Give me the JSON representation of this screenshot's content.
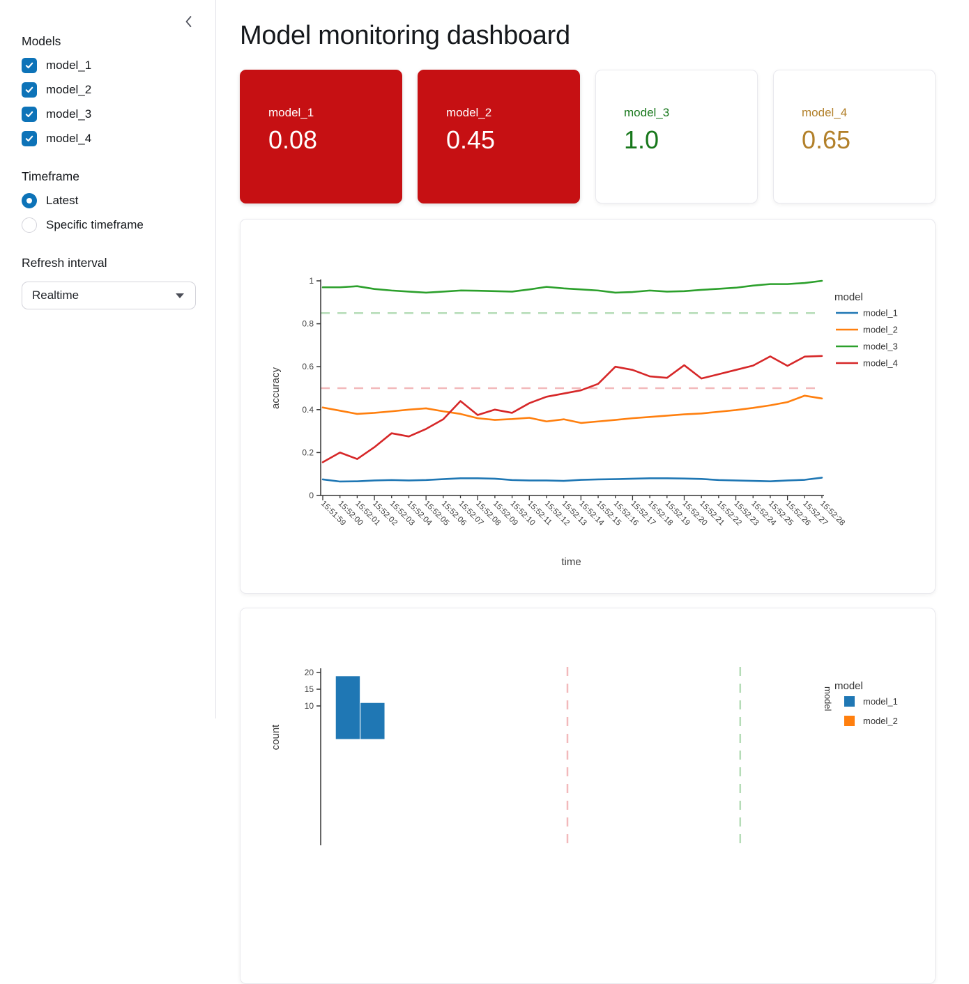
{
  "sidebar": {
    "models_label": "Models",
    "models": [
      {
        "label": "model_1",
        "checked": true
      },
      {
        "label": "model_2",
        "checked": true
      },
      {
        "label": "model_3",
        "checked": true
      },
      {
        "label": "model_4",
        "checked": true
      }
    ],
    "timeframe_label": "Timeframe",
    "timeframe_options": [
      {
        "label": "Latest",
        "selected": true
      },
      {
        "label": "Specific timeframe",
        "selected": false
      }
    ],
    "refresh_label": "Refresh interval",
    "refresh_value": "Realtime",
    "collapse_icon": "chevron-left"
  },
  "header": {
    "title": "Model monitoring dashboard"
  },
  "metrics": [
    {
      "label": "model_1",
      "value": "0.08",
      "state": "alert",
      "bg": "#c61013",
      "text": "#ffffff"
    },
    {
      "label": "model_2",
      "value": "0.45",
      "state": "alert",
      "bg": "#c61013",
      "text": "#ffffff"
    },
    {
      "label": "model_3",
      "value": "1.0",
      "state": "good",
      "bg": "#ffffff",
      "text": "#17771b"
    },
    {
      "label": "model_4",
      "value": "0.65",
      "state": "warn",
      "bg": "#ffffff",
      "text": "#b2802a"
    }
  ],
  "colors": {
    "primary": "#0d73b8",
    "alert_red": "#c61013",
    "threshold_green": "#b5dcb7",
    "threshold_pink": "#f2b9bb",
    "axis": "#333333"
  },
  "chart_data": [
    {
      "type": "line",
      "xlabel": "time",
      "ylabel": "accuracy",
      "ylim": [
        0,
        1
      ],
      "yticks": [
        0,
        0.2,
        0.4,
        0.6,
        0.8,
        1
      ],
      "legend_title": "model",
      "legend_position": "right",
      "x": [
        "15:51:59",
        "15:52:00",
        "15:52:01",
        "15:52:02",
        "15:52:03",
        "15:52:04",
        "15:52:05",
        "15:52:06",
        "15:52:07",
        "15:52:08",
        "15:52:09",
        "15:52:10",
        "15:52:11",
        "15:52:12",
        "15:52:13",
        "15:52:14",
        "15:52:15",
        "15:52:16",
        "15:52:17",
        "15:52:18",
        "15:52:19",
        "15:52:20",
        "15:52:21",
        "15:52:22",
        "15:52:23",
        "15:52:24",
        "15:52:25",
        "15:52:26",
        "15:52:27",
        "15:52:28"
      ],
      "series": [
        {
          "name": "model_1",
          "color": "#1f77b4",
          "values": [
            0.075,
            0.065,
            0.066,
            0.07,
            0.072,
            0.07,
            0.072,
            0.076,
            0.08,
            0.08,
            0.078,
            0.072,
            0.07,
            0.07,
            0.068,
            0.073,
            0.075,
            0.076,
            0.078,
            0.08,
            0.08,
            0.079,
            0.077,
            0.072,
            0.07,
            0.068,
            0.066,
            0.07,
            0.073,
            0.083
          ]
        },
        {
          "name": "model_2",
          "color": "#ff7f0e",
          "values": [
            0.41,
            0.395,
            0.38,
            0.385,
            0.392,
            0.4,
            0.406,
            0.392,
            0.38,
            0.36,
            0.352,
            0.356,
            0.362,
            0.345,
            0.355,
            0.338,
            0.345,
            0.352,
            0.36,
            0.366,
            0.372,
            0.378,
            0.382,
            0.39,
            0.398,
            0.408,
            0.42,
            0.435,
            0.465,
            0.452
          ]
        },
        {
          "name": "model_3",
          "color": "#2ca02c",
          "values": [
            0.97,
            0.97,
            0.975,
            0.962,
            0.955,
            0.95,
            0.945,
            0.95,
            0.955,
            0.954,
            0.952,
            0.95,
            0.96,
            0.972,
            0.965,
            0.96,
            0.955,
            0.945,
            0.948,
            0.955,
            0.95,
            0.952,
            0.958,
            0.963,
            0.968,
            0.978,
            0.985,
            0.985,
            0.99,
            1.0
          ]
        },
        {
          "name": "model_4",
          "color": "#d62728",
          "values": [
            0.155,
            0.2,
            0.17,
            0.225,
            0.29,
            0.275,
            0.31,
            0.355,
            0.44,
            0.375,
            0.4,
            0.385,
            0.43,
            0.46,
            0.475,
            0.49,
            0.52,
            0.6,
            0.585,
            0.555,
            0.548,
            0.607,
            0.545,
            0.565,
            0.585,
            0.605,
            0.648,
            0.604,
            0.647,
            0.65
          ]
        }
      ],
      "thresholds": [
        {
          "value": 0.85,
          "color": "#b5dcb7",
          "style": "dashed"
        },
        {
          "value": 0.5,
          "color": "#f2b9bb",
          "style": "dashed"
        }
      ]
    },
    {
      "type": "histogram",
      "ylabel": "count",
      "xlim": [
        0,
        1
      ],
      "yticks": [
        10,
        15,
        20
      ],
      "bars": [
        {
          "x0": 0.03,
          "x1": 0.08,
          "count": 19,
          "series": "model_1",
          "color": "#1f77b4"
        },
        {
          "x0": 0.08,
          "x1": 0.13,
          "count": 11,
          "series": "model_1",
          "color": "#1f77b4"
        }
      ],
      "thresholds": [
        {
          "value": 0.5,
          "color": "#f2b9bb",
          "style": "dashed"
        },
        {
          "value": 0.85,
          "color": "#b5dcb7",
          "style": "dashed"
        }
      ],
      "legend_title": "model",
      "legend_entries": [
        {
          "name": "model_1",
          "color": "#1f77b4"
        },
        {
          "name": "model_2",
          "color": "#ff7f0e"
        }
      ],
      "facet_label": "model"
    }
  ]
}
